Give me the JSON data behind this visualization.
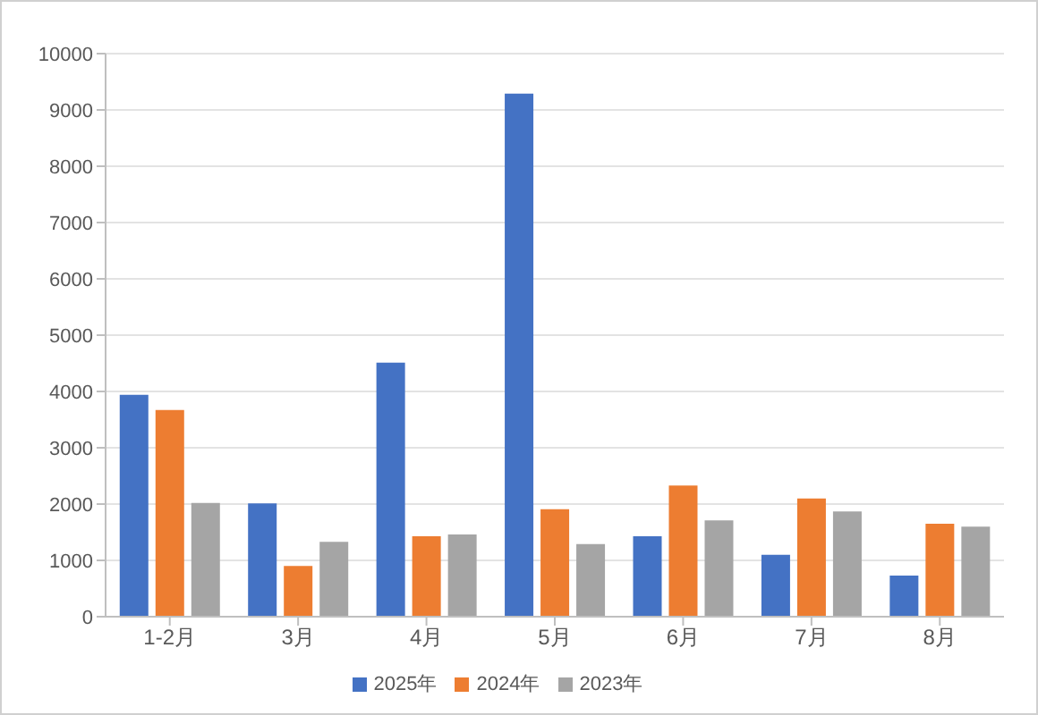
{
  "chart_data": {
    "type": "bar",
    "categories": [
      "1-2月",
      "3月",
      "4月",
      "5月",
      "6月",
      "7月",
      "8月"
    ],
    "series": [
      {
        "name": "2025年",
        "color": "#4472c4",
        "values": [
          3940,
          2010,
          4510,
          9290,
          1430,
          1100,
          730
        ]
      },
      {
        "name": "2024年",
        "color": "#ed7d31",
        "values": [
          3670,
          900,
          1430,
          1910,
          2330,
          2100,
          1650
        ]
      },
      {
        "name": "2023年",
        "color": "#a5a5a5",
        "values": [
          2020,
          1330,
          1460,
          1290,
          1710,
          1870,
          1600
        ]
      }
    ],
    "ylim": [
      0,
      10000
    ],
    "yticks": [
      0,
      1000,
      2000,
      3000,
      4000,
      5000,
      6000,
      7000,
      8000,
      9000,
      10000
    ],
    "grid": "y",
    "legend": "bottom"
  }
}
